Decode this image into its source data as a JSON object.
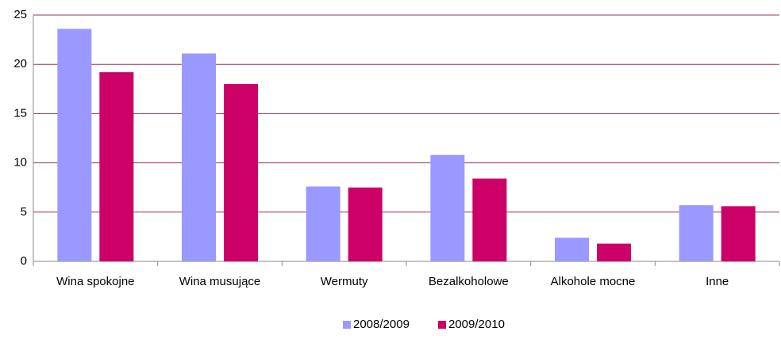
{
  "chart_data": {
    "type": "bar",
    "categories": [
      "Wina spokojne",
      "Wina musujące",
      "Wermuty",
      "Bezalkoholowe",
      "Alkohole mocne",
      "Inne"
    ],
    "series": [
      {
        "name": "2008/2009",
        "color": "#9999ff",
        "values": [
          23.6,
          21.1,
          7.6,
          10.8,
          2.4,
          5.7
        ]
      },
      {
        "name": "2009/2010",
        "color": "#cc0066",
        "values": [
          19.2,
          18.0,
          7.5,
          8.4,
          1.8,
          5.6
        ]
      }
    ],
    "ylim": [
      0,
      25
    ],
    "yticks": [
      0,
      5,
      10,
      15,
      20,
      25
    ],
    "grid": true,
    "legend": "bottom"
  }
}
